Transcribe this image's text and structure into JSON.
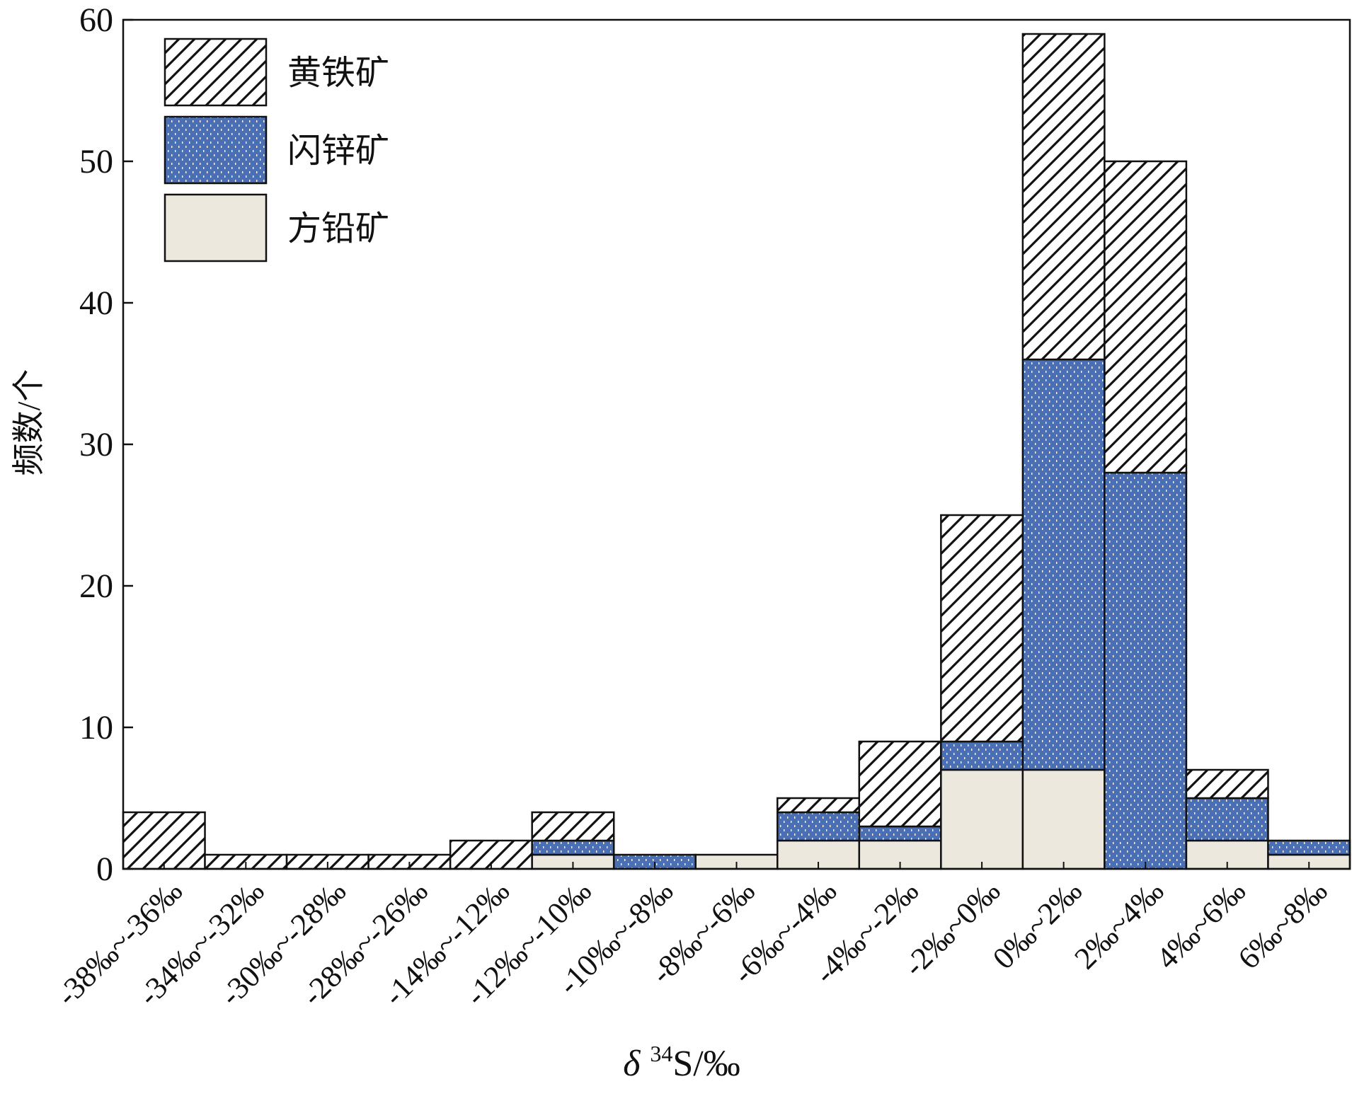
{
  "colors": {
    "pyrite_fill": "#ffffff",
    "pyrite_hatch": "#111111",
    "sphalerite_fill": "#4a6fb5",
    "sphalerite_dots": "#ffffff",
    "galena_fill": "#ece8de",
    "outline": "#111111"
  },
  "chart_data": {
    "type": "bar",
    "stacked": true,
    "title": "",
    "xlabel_prefix": "δ",
    "xlabel_sup": "34",
    "xlabel_suffix": "S/‰",
    "ylabel": "频数/个",
    "ylim": [
      0,
      60
    ],
    "yticks": [
      0,
      10,
      20,
      30,
      40,
      50,
      60
    ],
    "grid": false,
    "legend_position": "top-left",
    "categories": [
      "-38‰~-36‰",
      "-34‰~-32‰",
      "-30‰~-28‰",
      "-28‰~-26‰",
      "-14‰~-12‰",
      "-12‰~-10‰",
      "-10‰~-8‰",
      "-8‰~-6‰",
      "-6‰~-4‰",
      "-4‰~-2‰",
      "-2‰~0‰",
      "0‰~2‰",
      "2‰~4‰",
      "4‰~6‰",
      "6‰~8‰"
    ],
    "series": [
      {
        "name": "方铅矿",
        "key": "galena",
        "values": [
          0,
          0,
          0,
          0,
          0,
          1,
          0,
          1,
          2,
          2,
          7,
          7,
          0,
          2,
          1
        ]
      },
      {
        "name": "闪锌矿",
        "key": "sphalerite",
        "values": [
          0,
          0,
          0,
          0,
          0,
          1,
          1,
          0,
          2,
          1,
          2,
          29,
          28,
          3,
          1
        ]
      },
      {
        "name": "黄铁矿",
        "key": "pyrite",
        "values": [
          4,
          1,
          1,
          1,
          2,
          2,
          0,
          0,
          1,
          6,
          16,
          23,
          22,
          2,
          0
        ]
      }
    ],
    "legend_order": [
      "pyrite",
      "sphalerite",
      "galena"
    ]
  }
}
